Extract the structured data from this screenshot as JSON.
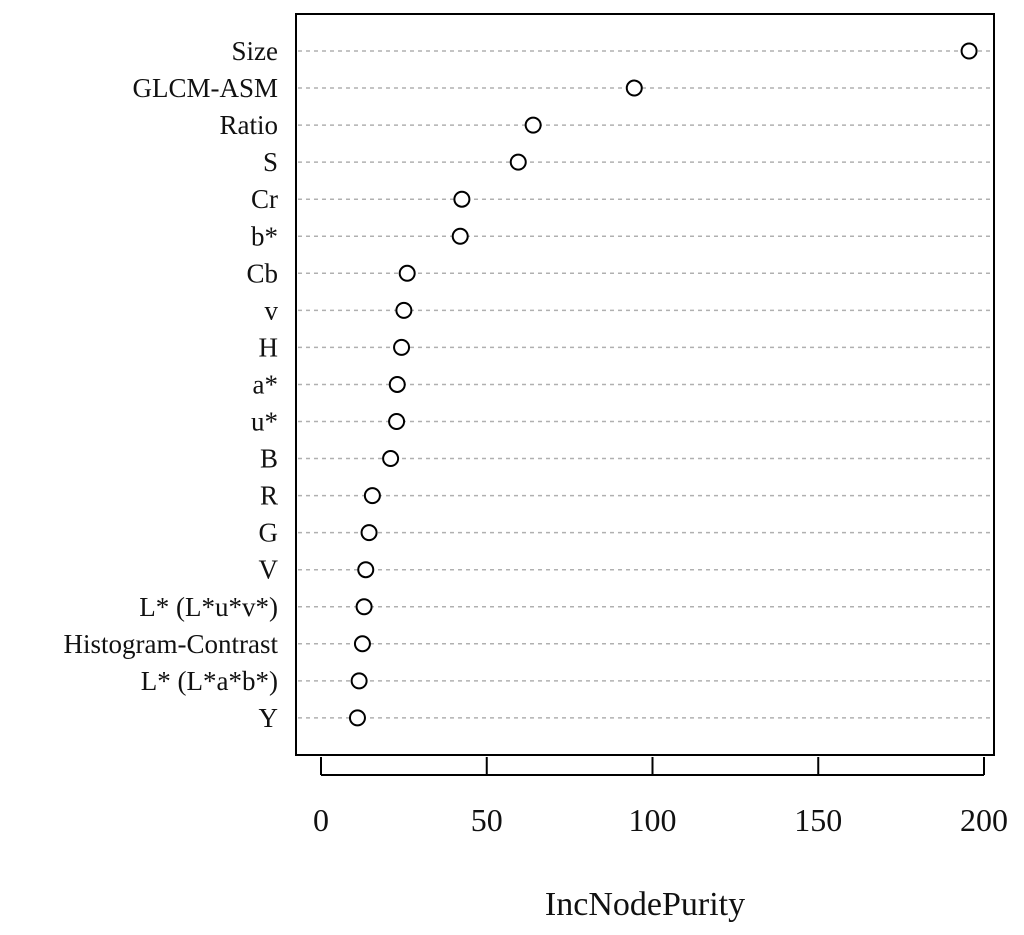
{
  "chart_data": {
    "type": "scatter",
    "title": "",
    "xlabel": "IncNodePurity",
    "ylabel": "",
    "xlim": [
      -7.5,
      203
    ],
    "xticks": [
      "0",
      "50",
      "100",
      "150",
      "200"
    ],
    "xtick_values": [
      0,
      50,
      100,
      150,
      200
    ],
    "grid": "horizontal dashed guide lines",
    "categories": [
      "Size",
      "GLCM-ASM",
      "Ratio",
      "S",
      "Cr",
      "b*",
      "Cb",
      "v",
      "H",
      "a*",
      "u*",
      "B",
      "R",
      "G",
      "V",
      "L* (L*u*v*)",
      "Histogram-Contrast",
      "L* (L*a*b*)",
      "Y"
    ],
    "values": [
      195.5,
      94.5,
      64.0,
      59.5,
      42.5,
      42.0,
      26.0,
      25.0,
      24.3,
      23.0,
      22.8,
      21.0,
      15.5,
      14.5,
      13.5,
      13.0,
      12.5,
      11.5,
      11.0
    ],
    "colors": {
      "axis": "#000000",
      "guide": "#b0b0b0",
      "point_stroke": "#000000",
      "point_fill": "#ffffff"
    }
  }
}
